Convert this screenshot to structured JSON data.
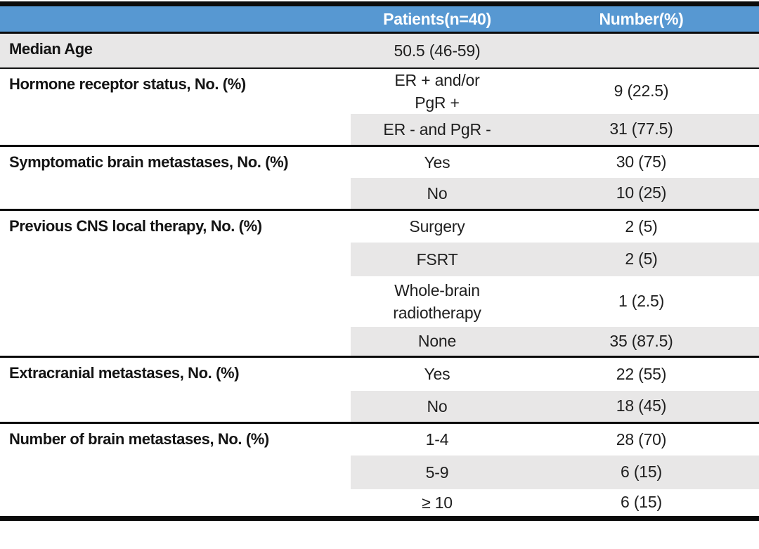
{
  "colors": {
    "header_bg": "#5798d2",
    "header_text": "#ffffff",
    "band_bg": "#e8e7e7",
    "divider": "#0b0b0b"
  },
  "table": {
    "header": {
      "col1": "",
      "col2": "Patients(n=40)",
      "col3": "Number(%)"
    },
    "sections": [
      {
        "label": "Median Age",
        "rows": [
          {
            "patients": "50.5 (46-59)",
            "number": ""
          }
        ]
      },
      {
        "label": "Hormone receptor status, No. (%)",
        "rows": [
          {
            "patients": "ER + and/or\nPgR +",
            "number": "9 (22.5)"
          },
          {
            "patients": "ER - and PgR -",
            "number": "31 (77.5)"
          }
        ]
      },
      {
        "label": "Symptomatic brain metastases, No. (%)",
        "rows": [
          {
            "patients": "Yes",
            "number": "30 (75)"
          },
          {
            "patients": "No",
            "number": "10 (25)"
          }
        ]
      },
      {
        "label": "Previous CNS local therapy, No. (%)",
        "rows": [
          {
            "patients": "Surgery",
            "number": "2 (5)"
          },
          {
            "patients": "FSRT",
            "number": "2 (5)"
          },
          {
            "patients": "Whole-brain\nradiotherapy",
            "number": "1 (2.5)"
          },
          {
            "patients": "None",
            "number": "35 (87.5)"
          }
        ]
      },
      {
        "label": "Extracranial metastases, No. (%)",
        "rows": [
          {
            "patients": "Yes",
            "number": "22 (55)"
          },
          {
            "patients": "No",
            "number": "18 (45)"
          }
        ]
      },
      {
        "label": "Number of brain metastases, No. (%)",
        "rows": [
          {
            "patients": "1-4",
            "number": "28 (70)"
          },
          {
            "patients": "5-9",
            "number": "6 (15)"
          },
          {
            "patients": "≥ 10",
            "number": "6 (15)"
          }
        ]
      }
    ]
  },
  "chart_data": {
    "type": "table",
    "columns": [
      "",
      "Patients(n=40)",
      "Number(%)"
    ],
    "rows": [
      [
        "Median Age",
        "50.5 (46-59)",
        ""
      ],
      [
        "Hormone receptor status, No. (%)",
        "ER + and/or PgR +",
        "9 (22.5)"
      ],
      [
        "",
        "ER - and PgR -",
        "31 (77.5)"
      ],
      [
        "Symptomatic brain metastases, No. (%)",
        "Yes",
        "30 (75)"
      ],
      [
        "",
        "No",
        "10 (25)"
      ],
      [
        "Previous CNS local therapy, No. (%)",
        "Surgery",
        "2 (5)"
      ],
      [
        "",
        "FSRT",
        "2 (5)"
      ],
      [
        "",
        "Whole-brain radiotherapy",
        "1 (2.5)"
      ],
      [
        "",
        "None",
        "35 (87.5)"
      ],
      [
        "Extracranial metastases, No. (%)",
        "Yes",
        "22 (55)"
      ],
      [
        "",
        "No",
        "18 (45)"
      ],
      [
        "Number of brain metastases, No. (%)",
        "1-4",
        "28 (70)"
      ],
      [
        "",
        "5-9",
        "6 (15)"
      ],
      [
        "",
        "≥ 10",
        "6 (15)"
      ]
    ]
  }
}
